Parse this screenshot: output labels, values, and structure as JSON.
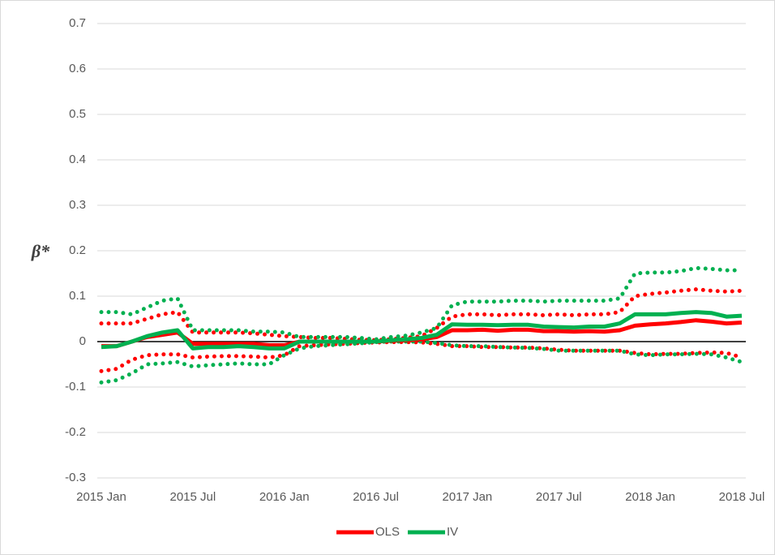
{
  "chart_data": {
    "type": "line",
    "y_label": "β*",
    "categories": [
      "2015 Jan",
      null,
      null,
      null,
      null,
      null,
      "2015 Jul",
      null,
      null,
      null,
      null,
      null,
      "2016 Jan",
      null,
      null,
      null,
      null,
      null,
      "2016 Jul",
      null,
      null,
      null,
      null,
      null,
      "2017 Jan",
      null,
      null,
      null,
      null,
      null,
      "2017 Jul",
      null,
      null,
      null,
      null,
      null,
      "2018 Jan",
      null,
      null,
      null,
      null,
      null,
      "2018 Jul"
    ],
    "ylim": [
      -0.3,
      0.7
    ],
    "yticks": [
      -0.3,
      -0.2,
      -0.1,
      0,
      0.1,
      0.2,
      0.3,
      0.4,
      0.5,
      0.6,
      0.7
    ],
    "grid": true,
    "legend": "bottom",
    "series": [
      {
        "name": "OLS",
        "color": "#ff0000",
        "values": [
          -0.01,
          -0.01,
          0,
          0.01,
          0.015,
          0.02,
          -0.005,
          -0.005,
          -0.005,
          -0.005,
          -0.005,
          -0.008,
          -0.008,
          0,
          0,
          0,
          0,
          0,
          0,
          0.002,
          0.003,
          0.005,
          0.01,
          0.025,
          0.025,
          0.026,
          0.024,
          0.026,
          0.026,
          0.023,
          0.023,
          0.022,
          0.023,
          0.022,
          0.025,
          0.035,
          0.038,
          0.04,
          0.043,
          0.047,
          0.044,
          0.04,
          0.042
        ],
        "upper": [
          0.04,
          0.04,
          0.04,
          0.05,
          0.06,
          0.065,
          0.02,
          0.02,
          0.02,
          0.02,
          0.018,
          0.015,
          0.012,
          0.01,
          0.008,
          0.008,
          0.006,
          0.004,
          0.003,
          0.005,
          0.008,
          0.012,
          0.03,
          0.055,
          0.06,
          0.06,
          0.058,
          0.06,
          0.06,
          0.058,
          0.06,
          0.058,
          0.06,
          0.06,
          0.065,
          0.1,
          0.105,
          0.108,
          0.112,
          0.115,
          0.112,
          0.11,
          0.112
        ],
        "lower": [
          -0.065,
          -0.06,
          -0.04,
          -0.03,
          -0.028,
          -0.028,
          -0.035,
          -0.033,
          -0.032,
          -0.032,
          -0.033,
          -0.035,
          -0.03,
          -0.01,
          -0.008,
          -0.006,
          -0.005,
          -0.003,
          -0.002,
          -0.001,
          -0.001,
          -0.002,
          -0.005,
          -0.01,
          -0.01,
          -0.012,
          -0.012,
          -0.013,
          -0.013,
          -0.015,
          -0.018,
          -0.02,
          -0.02,
          -0.02,
          -0.02,
          -0.025,
          -0.028,
          -0.027,
          -0.027,
          -0.025,
          -0.024,
          -0.025,
          -0.035
        ]
      },
      {
        "name": "IV",
        "color": "#00b050",
        "values": [
          -0.012,
          -0.01,
          0,
          0.012,
          0.02,
          0.025,
          -0.015,
          -0.012,
          -0.012,
          -0.01,
          -0.012,
          -0.015,
          -0.015,
          0,
          0,
          0,
          0,
          0,
          0,
          0.003,
          0.005,
          0.008,
          0.015,
          0.038,
          0.037,
          0.037,
          0.036,
          0.037,
          0.037,
          0.033,
          0.032,
          0.031,
          0.033,
          0.033,
          0.04,
          0.06,
          0.06,
          0.06,
          0.063,
          0.065,
          0.063,
          0.055,
          0.057
        ],
        "upper": [
          0.065,
          0.065,
          0.06,
          0.075,
          0.09,
          0.095,
          0.025,
          0.025,
          0.025,
          0.025,
          0.022,
          0.022,
          0.02,
          0.01,
          0.01,
          0.01,
          0.01,
          0.008,
          0.005,
          0.01,
          0.013,
          0.02,
          0.03,
          0.08,
          0.088,
          0.088,
          0.088,
          0.09,
          0.09,
          0.088,
          0.09,
          0.09,
          0.09,
          0.09,
          0.095,
          0.15,
          0.152,
          0.152,
          0.155,
          0.162,
          0.16,
          0.157,
          0.157
        ],
        "lower": [
          -0.09,
          -0.085,
          -0.07,
          -0.05,
          -0.048,
          -0.045,
          -0.055,
          -0.052,
          -0.05,
          -0.048,
          -0.05,
          -0.05,
          -0.03,
          -0.015,
          -0.01,
          -0.008,
          -0.006,
          -0.004,
          -0.001,
          0,
          0,
          0,
          -0.003,
          -0.008,
          -0.01,
          -0.01,
          -0.012,
          -0.013,
          -0.014,
          -0.016,
          -0.02,
          -0.02,
          -0.02,
          -0.02,
          -0.02,
          -0.028,
          -0.03,
          -0.028,
          -0.028,
          -0.027,
          -0.028,
          -0.035,
          -0.045
        ]
      }
    ]
  }
}
